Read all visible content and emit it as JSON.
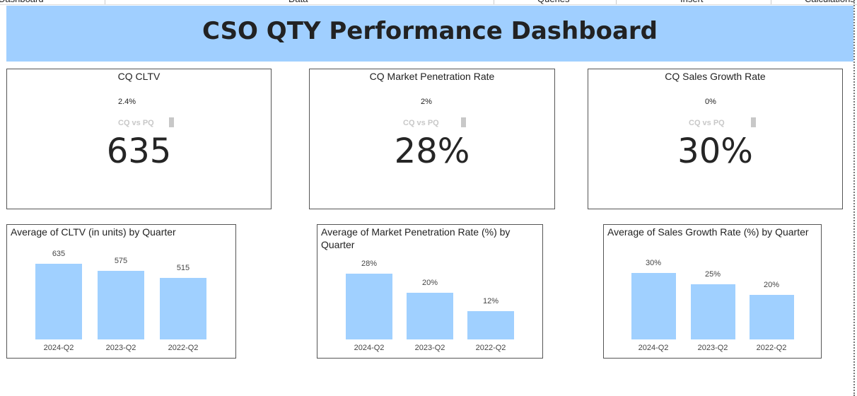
{
  "ribbon": {
    "tabs": [
      "Dashboard",
      "Data",
      "Queries",
      "Insert",
      "Calculations"
    ]
  },
  "header": {
    "title": "CSO QTY Performance Dashboard"
  },
  "kpis": [
    {
      "title": "CQ CLTV",
      "change": "2.4%",
      "compare_label": "CQ vs PQ",
      "value": "635"
    },
    {
      "title": "CQ Market Penetration Rate",
      "change": "2%",
      "compare_label": "CQ vs PQ",
      "value": "28%"
    },
    {
      "title": "CQ Sales Growth Rate",
      "change": "0%",
      "compare_label": "CQ vs PQ",
      "value": "30%"
    }
  ],
  "chart_data": [
    {
      "type": "bar",
      "title": "Average of CLTV (in units) by Quarter",
      "categories": [
        "2024-Q2",
        "2023-Q2",
        "2022-Q2"
      ],
      "values": [
        635,
        575,
        515
      ],
      "color": "#a0d0ff"
    },
    {
      "type": "bar",
      "title": "Average of Market Penetration Rate (%) by Quarter",
      "categories": [
        "2024-Q2",
        "2023-Q2",
        "2022-Q2"
      ],
      "values": [
        28,
        20,
        12
      ],
      "value_labels": [
        "28%",
        "20%",
        "12%"
      ],
      "color": "#a0d0ff"
    },
    {
      "type": "bar",
      "title": "Average of Sales Growth Rate (%) by Quarter",
      "categories": [
        "2024-Q2",
        "2023-Q2",
        "2022-Q2"
      ],
      "values": [
        30,
        25,
        20
      ],
      "value_labels": [
        "30%",
        "25%",
        "20%"
      ],
      "color": "#a0d0ff"
    }
  ]
}
